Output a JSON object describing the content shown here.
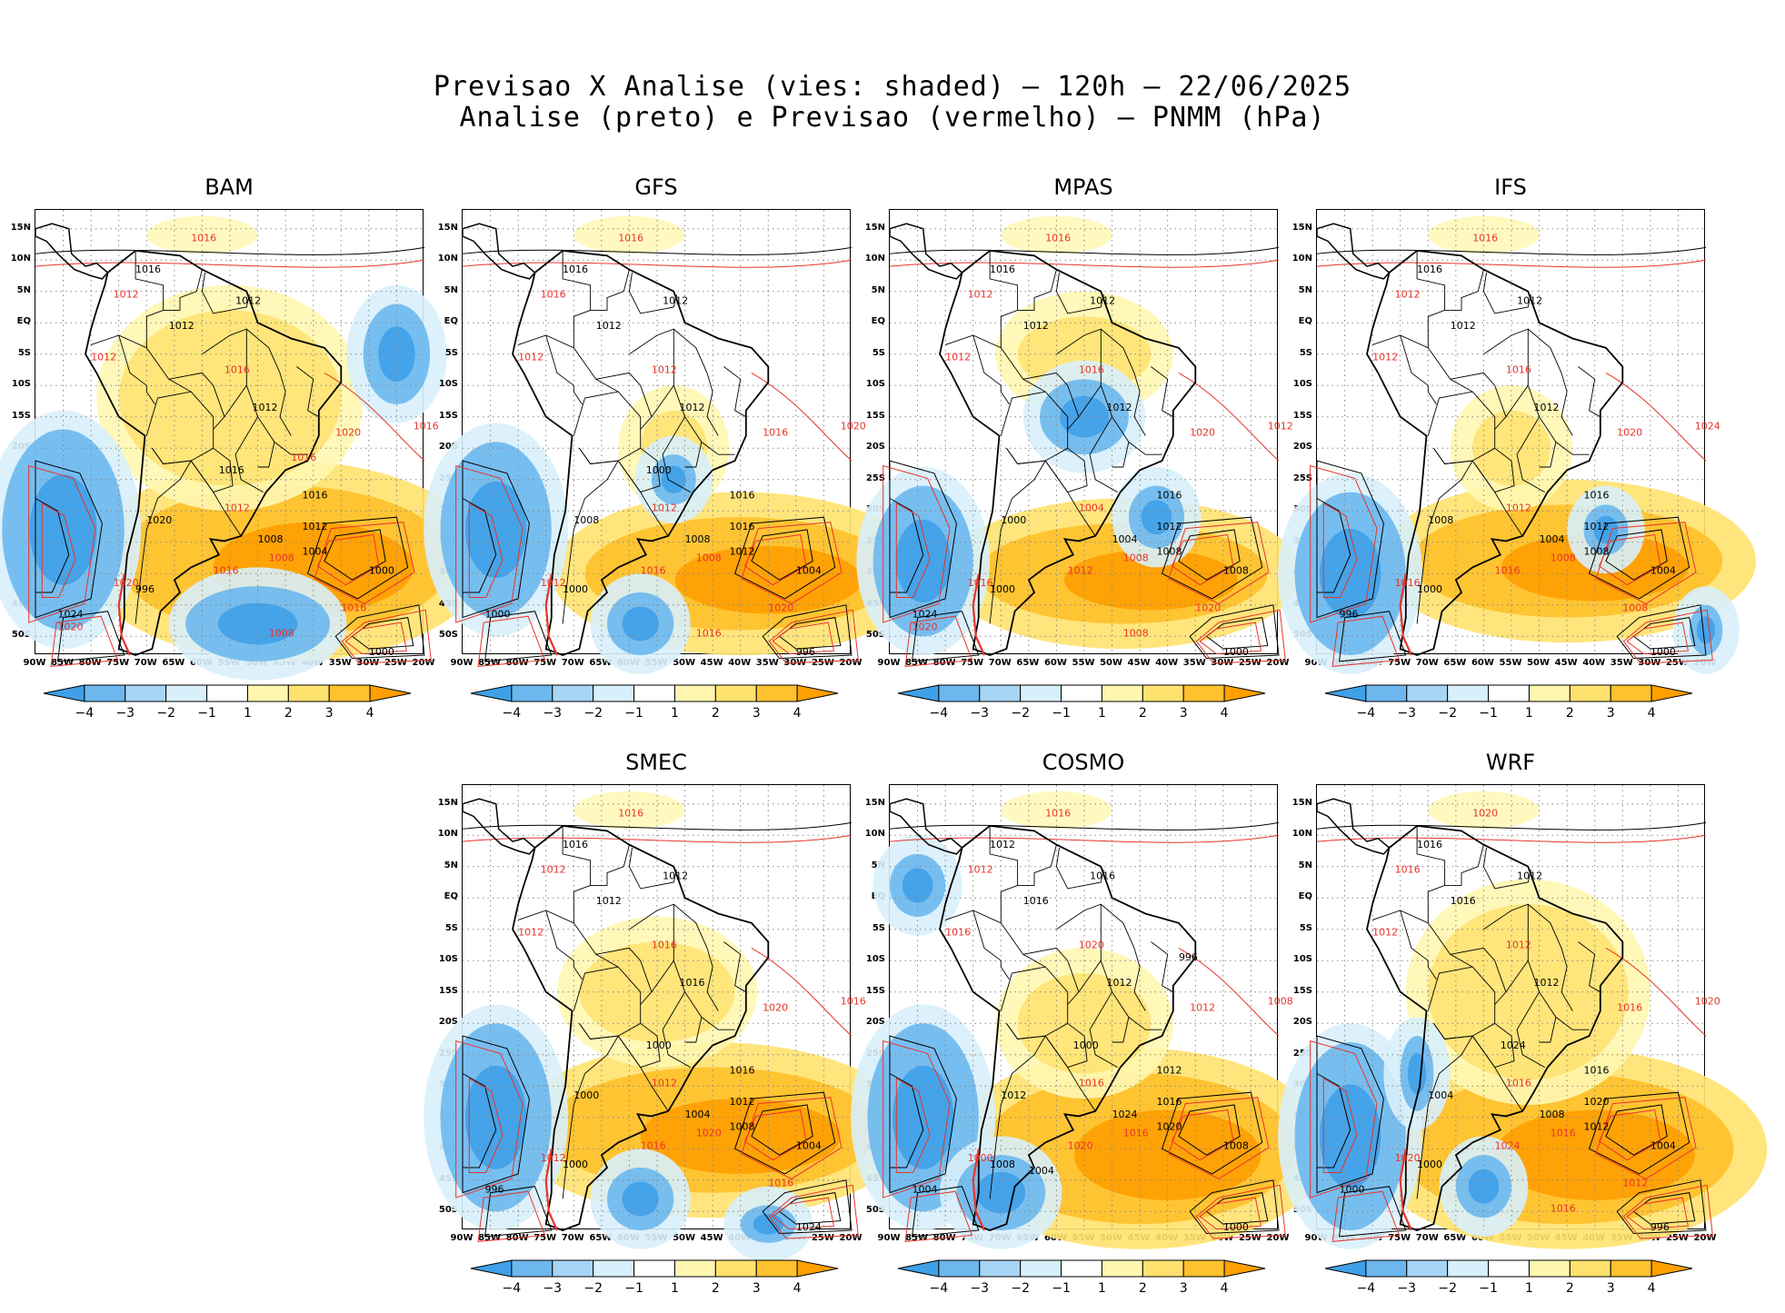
{
  "title": {
    "line1": "Previsao X Analise (vies: shaded) – 120h – 22/06/2025",
    "line2": "Analise (preto) e Previsao (vermelho) – PNMM (hPa)"
  },
  "lat_labels": [
    "15N",
    "10N",
    "5N",
    "EQ",
    "5S",
    "10S",
    "15S",
    "20S",
    "25S",
    "30S",
    "35S",
    "40S",
    "45S",
    "50S"
  ],
  "lon_labels": [
    "90W",
    "85W",
    "80W",
    "75W",
    "70W",
    "65W",
    "60W",
    "55W",
    "50W",
    "45W",
    "40W",
    "35W",
    "30W",
    "25W",
    "20W"
  ],
  "colorbar": {
    "labels": [
      "−4",
      "−3",
      "−2",
      "−1",
      "1",
      "2",
      "3",
      "4"
    ],
    "colors": [
      "#3fa0e8",
      "#6cb8ee",
      "#a6d5f5",
      "#d8f0fb",
      "#ffffff",
      "#fff7b0",
      "#ffe26e",
      "#ffc22e",
      "#ff9f00"
    ]
  },
  "colors": {
    "analysis_contour": "#000000",
    "forecast_contour": "#e8332a",
    "warm_bias": "#ffb000",
    "cold_bias": "#4aa8ee"
  },
  "panels": [
    {
      "name": "BAM",
      "labels": {
        "black": [
          "1016",
          "1012",
          "1012",
          "1012",
          "1016",
          "1012",
          "1004",
          "1008",
          "1000",
          "1020",
          "996",
          "1024",
          "1000",
          "1016"
        ],
        "red": [
          "1016",
          "1012",
          "1012",
          "1016",
          "1020",
          "1016",
          "1012",
          "1008",
          "1016",
          "1020",
          "1016",
          "1008",
          "1020",
          "1016"
        ]
      }
    },
    {
      "name": "GFS",
      "labels": {
        "black": [
          "1016",
          "1012",
          "1012",
          "1012",
          "1016",
          "1016",
          "1012",
          "1008",
          "1004",
          "1008",
          "1000",
          "1000",
          "996",
          "1000"
        ],
        "red": [
          "1016",
          "1016",
          "1012",
          "1012",
          "1016",
          "1020",
          "1012",
          "1008",
          "1016",
          "1012",
          "1020",
          "1016"
        ]
      }
    },
    {
      "name": "MPAS",
      "labels": {
        "black": [
          "1016",
          "1012",
          "1012",
          "1012",
          "1016",
          "1012",
          "1008",
          "1004",
          "1008",
          "1000",
          "1000",
          "1024",
          "1000"
        ],
        "red": [
          "1016",
          "1012",
          "1012",
          "1016",
          "1020",
          "1012",
          "1004",
          "1008",
          "1012",
          "1016",
          "1020",
          "1008",
          "1020"
        ]
      }
    },
    {
      "name": "IFS",
      "labels": {
        "black": [
          "1016",
          "1012",
          "1012",
          "1012",
          "1016",
          "1012",
          "1008",
          "1004",
          "1004",
          "1008",
          "1000",
          "996",
          "1000"
        ],
        "red": [
          "1016",
          "1012",
          "1012",
          "1016",
          "1020",
          "1024",
          "1012",
          "1008",
          "1016",
          "1016",
          "1008"
        ]
      }
    },
    {
      "name": "SMEC",
      "labels": {
        "black": [
          "1016",
          "1012",
          "1012",
          "1016",
          "1016",
          "1012",
          "1008",
          "1004",
          "1004",
          "1000",
          "1000",
          "996",
          "1024",
          "1000"
        ],
        "red": [
          "1016",
          "1012",
          "1012",
          "1016",
          "1020",
          "1016",
          "1012",
          "1020",
          "1016",
          "1012",
          "1016"
        ]
      }
    },
    {
      "name": "COSMO",
      "labels": {
        "black": [
          "1012",
          "1016",
          "1016",
          "1012",
          "1012",
          "1016",
          "1020",
          "1024",
          "1008",
          "1012",
          "1008",
          "1004",
          "1000",
          "1000",
          "1004",
          "996"
        ],
        "red": [
          "1016",
          "1012",
          "1016",
          "1020",
          "1012",
          "1008",
          "1016",
          "1016",
          "1020",
          "1000"
        ]
      }
    },
    {
      "name": "WRF",
      "labels": {
        "black": [
          "1016",
          "1016",
          "1012",
          "1012",
          "1016",
          "1020",
          "1012",
          "1008",
          "1004",
          "1004",
          "1000",
          "1000",
          "996",
          "1024"
        ],
        "red": [
          "1020",
          "1016",
          "1012",
          "1012",
          "1016",
          "1020",
          "1016",
          "1016",
          "1024",
          "1020",
          "1012",
          "1016"
        ]
      }
    }
  ]
}
